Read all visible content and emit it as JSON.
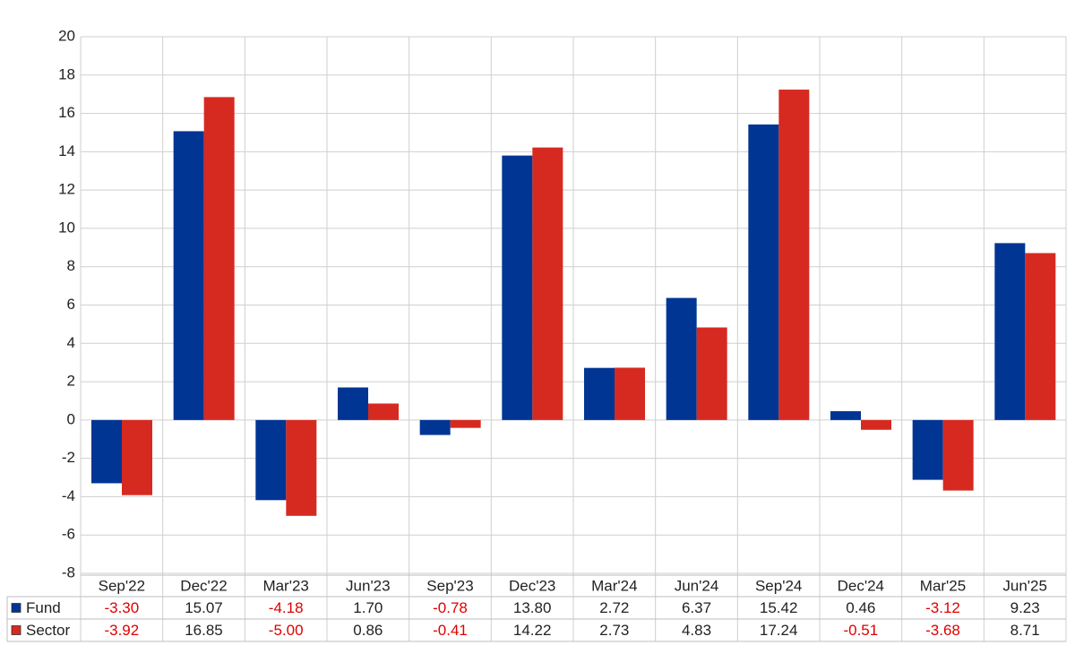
{
  "chart_data": {
    "type": "bar",
    "categories": [
      "Sep'22",
      "Dec'22",
      "Mar'23",
      "Jun'23",
      "Sep'23",
      "Dec'23",
      "Mar'24",
      "Jun'24",
      "Sep'24",
      "Dec'24",
      "Mar'25",
      "Jun'25"
    ],
    "series": [
      {
        "name": "Fund",
        "color": "#003594",
        "values": [
          -3.3,
          15.07,
          -4.18,
          1.7,
          -0.78,
          13.8,
          2.72,
          6.37,
          15.42,
          0.46,
          -3.12,
          9.23
        ],
        "value_labels": [
          "-3.30",
          "15.07",
          "-4.18",
          "1.70",
          "-0.78",
          "13.80",
          "2.72",
          "6.37",
          "15.42",
          "0.46",
          "-3.12",
          "9.23"
        ]
      },
      {
        "name": "Sector",
        "color": "#d62a20",
        "values": [
          -3.92,
          16.85,
          -5.0,
          0.86,
          -0.41,
          14.22,
          2.73,
          4.83,
          17.24,
          -0.51,
          -3.68,
          8.71
        ],
        "value_labels": [
          "-3.92",
          "16.85",
          "-5.00",
          "0.86",
          "-0.41",
          "14.22",
          "2.73",
          "4.83",
          "17.24",
          "-0.51",
          "-3.68",
          "8.71"
        ]
      }
    ],
    "ylim": [
      -8,
      20
    ],
    "yticks": [
      -8,
      -6,
      -4,
      -2,
      0,
      2,
      4,
      6,
      8,
      10,
      12,
      14,
      16,
      18,
      20
    ],
    "grid": true
  }
}
